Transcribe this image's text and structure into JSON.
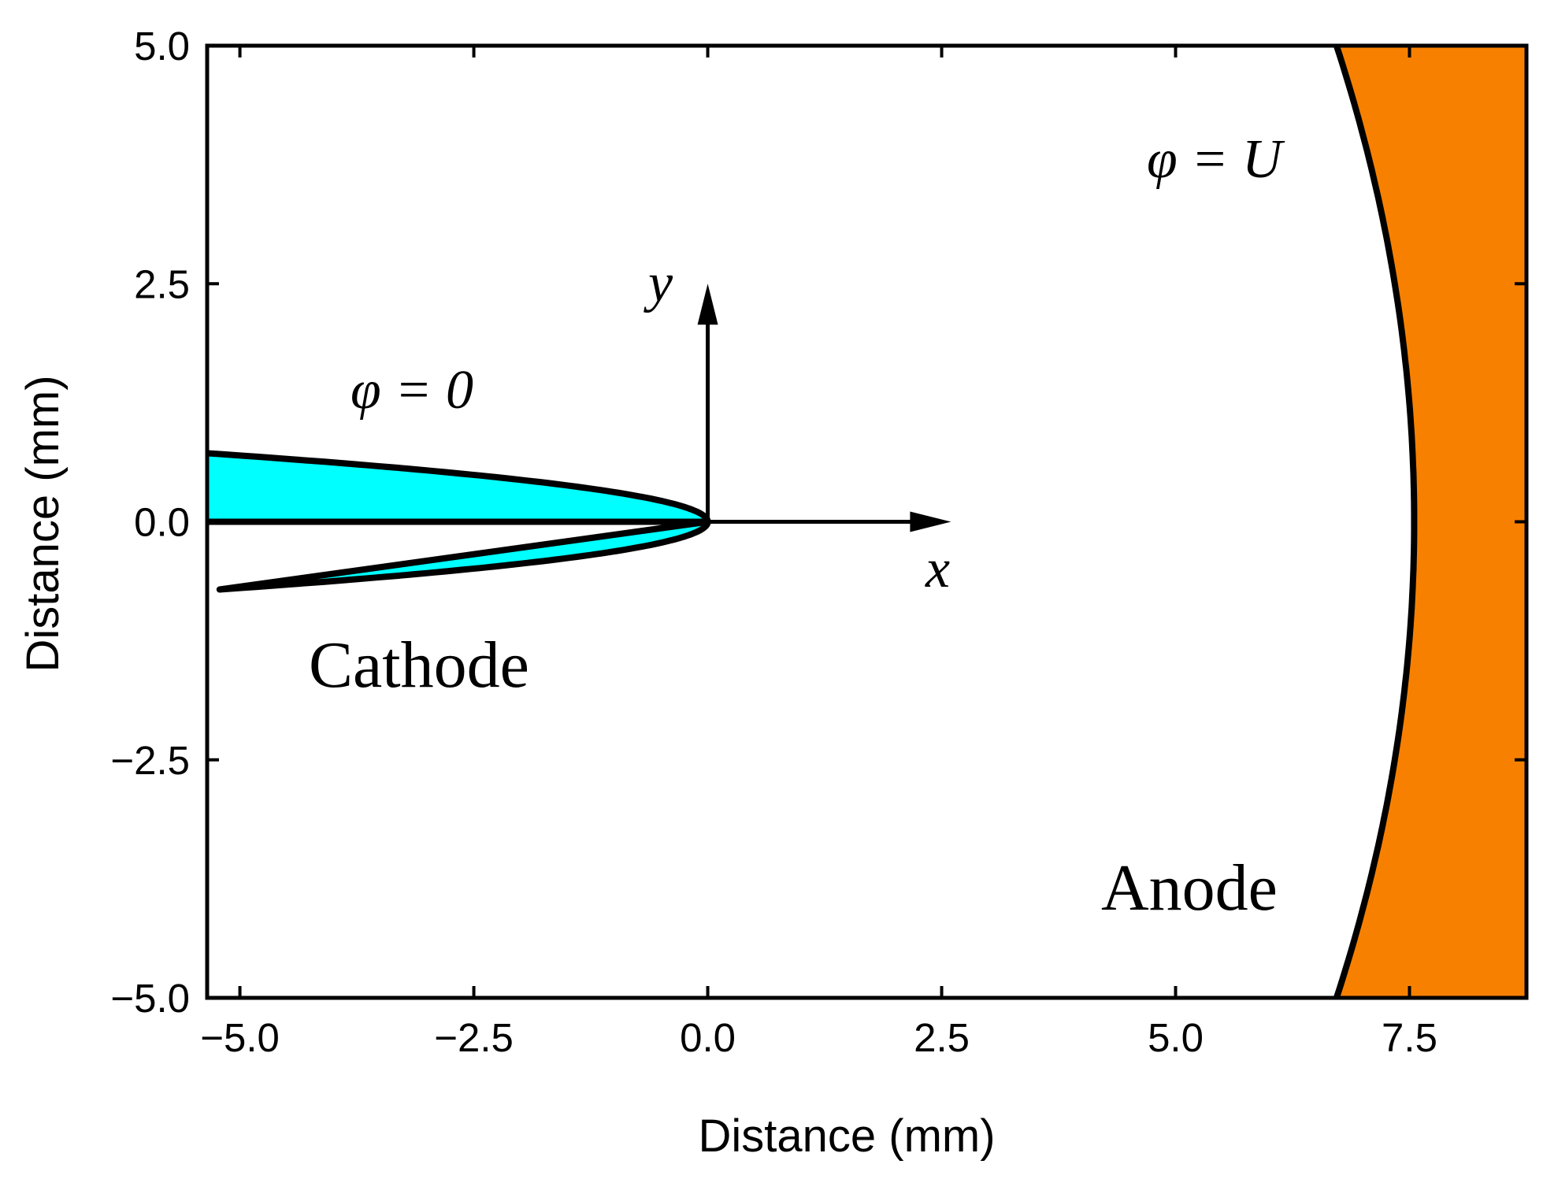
{
  "chart_data": {
    "type": "diagram",
    "xlabel": "Distance (mm)",
    "ylabel": "Distance (mm)",
    "xlim": [
      -5.35,
      8.75
    ],
    "ylim": [
      -5.0,
      5.0
    ],
    "x_ticks": [
      -5.0,
      -2.5,
      0.0,
      2.5,
      5.0,
      7.5
    ],
    "x_tick_labels": [
      "−5.0",
      "−2.5",
      "0.0",
      "2.5",
      "5.0",
      "7.5"
    ],
    "y_ticks": [
      5.0,
      2.5,
      0.0,
      -2.5,
      -5.0
    ],
    "y_tick_labels": [
      "5.0",
      "2.5",
      "0.0",
      "−2.5",
      "−5.0"
    ],
    "cathode": {
      "label": "Cathode",
      "potential_label": "φ = 0",
      "color": "#00FFFF",
      "tip_x": 0.0,
      "half_width_at_x_min": 0.72
    },
    "anode": {
      "label": "Anode",
      "potential_label": "φ = U",
      "color": "#F88000",
      "vertex_x": 7.55,
      "edge_x_at_y_limits": 6.72
    },
    "coordinate_axes": {
      "x_label": "x",
      "y_label": "y",
      "x_arrow_end": 2.6,
      "y_arrow_end": 2.5
    }
  }
}
